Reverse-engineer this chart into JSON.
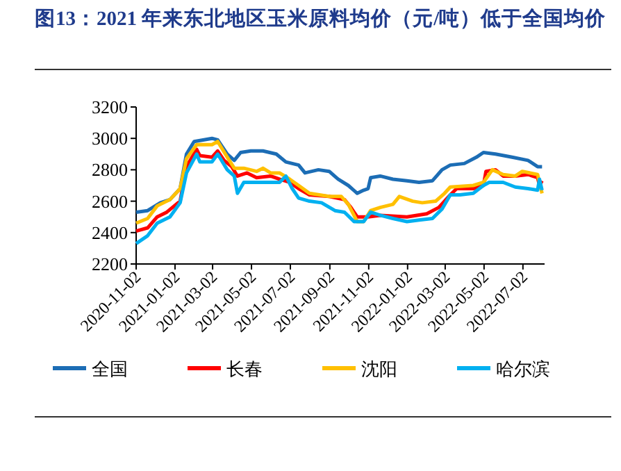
{
  "chart_data": {
    "type": "line",
    "title": "图13：2021 年来东北地区玉米原料均价（元/吨）低于全国均价",
    "xlim": [
      "2020-11-02",
      "2022-08-05"
    ],
    "xticks": [
      "2020-11-02",
      "2021-01-02",
      "2021-03-02",
      "2021-05-02",
      "2021-07-02",
      "2021-09-02",
      "2021-11-02",
      "2022-01-02",
      "2022-03-02",
      "2022-05-02",
      "2022-07-02"
    ],
    "ylim": [
      2200,
      3200
    ],
    "yticks": [
      2200,
      2400,
      2600,
      2800,
      3000,
      3200
    ],
    "grid": false,
    "legend": "bottom",
    "marker": "none",
    "line_style": "solid",
    "series": [
      {
        "name": "全国",
        "color": "#1c6db5",
        "x": [
          "2020-11-02",
          "2020-11-20",
          "2020-12-10",
          "2020-12-25",
          "2021-01-10",
          "2021-01-20",
          "2021-02-01",
          "2021-02-15",
          "2021-03-01",
          "2021-03-10",
          "2021-03-25",
          "2021-04-05",
          "2021-04-15",
          "2021-05-01",
          "2021-05-20",
          "2021-06-10",
          "2021-06-25",
          "2021-07-15",
          "2021-07-25",
          "2021-08-15",
          "2021-09-01",
          "2021-09-15",
          "2021-10-01",
          "2021-10-15",
          "2021-10-25",
          "2021-11-01",
          "2021-11-05",
          "2021-11-20",
          "2021-12-10",
          "2022-01-01",
          "2022-01-20",
          "2022-02-10",
          "2022-02-25",
          "2022-03-10",
          "2022-04-01",
          "2022-04-20",
          "2022-05-01",
          "2022-05-20",
          "2022-06-15",
          "2022-07-10",
          "2022-07-25",
          "2022-08-01"
        ],
        "values": [
          2530,
          2540,
          2590,
          2610,
          2680,
          2900,
          2980,
          2990,
          3000,
          2990,
          2900,
          2860,
          2910,
          2920,
          2920,
          2900,
          2850,
          2830,
          2780,
          2800,
          2790,
          2740,
          2700,
          2650,
          2670,
          2680,
          2750,
          2760,
          2740,
          2730,
          2720,
          2730,
          2800,
          2830,
          2840,
          2880,
          2910,
          2900,
          2880,
          2860,
          2820,
          2820
        ]
      },
      {
        "name": "长春",
        "color": "#ff0000",
        "x": [
          "2020-11-02",
          "2020-11-20",
          "2020-12-05",
          "2020-12-20",
          "2021-01-10",
          "2021-01-20",
          "2021-02-05",
          "2021-02-10",
          "2021-03-01",
          "2021-03-10",
          "2021-03-20",
          "2021-04-01",
          "2021-04-10",
          "2021-04-25",
          "2021-05-10",
          "2021-06-01",
          "2021-06-15",
          "2021-07-01",
          "2021-07-15",
          "2021-08-01",
          "2021-09-01",
          "2021-09-25",
          "2021-10-05",
          "2021-10-15",
          "2021-11-01",
          "2021-11-20",
          "2022-01-01",
          "2022-02-01",
          "2022-02-20",
          "2022-03-10",
          "2022-03-20",
          "2022-04-15",
          "2022-05-01",
          "2022-05-05",
          "2022-05-20",
          "2022-06-01",
          "2022-06-20",
          "2022-07-10",
          "2022-07-25",
          "2022-07-28",
          "2022-08-01"
        ],
        "values": [
          2410,
          2430,
          2500,
          2530,
          2600,
          2820,
          2930,
          2890,
          2880,
          2920,
          2860,
          2820,
          2760,
          2780,
          2750,
          2760,
          2740,
          2720,
          2680,
          2640,
          2630,
          2610,
          2560,
          2500,
          2500,
          2510,
          2500,
          2520,
          2560,
          2640,
          2680,
          2680,
          2700,
          2790,
          2800,
          2760,
          2760,
          2770,
          2750,
          2700,
          2730
        ]
      },
      {
        "name": "沈阳",
        "color": "#ffc000",
        "x": [
          "2020-11-02",
          "2020-11-20",
          "2020-12-05",
          "2020-12-25",
          "2021-01-10",
          "2021-01-20",
          "2021-02-05",
          "2021-03-01",
          "2021-03-10",
          "2021-03-25",
          "2021-04-05",
          "2021-04-20",
          "2021-05-10",
          "2021-05-20",
          "2021-06-01",
          "2021-06-15",
          "2021-07-01",
          "2021-07-15",
          "2021-08-01",
          "2021-09-01",
          "2021-09-20",
          "2021-10-01",
          "2021-10-15",
          "2021-10-25",
          "2021-11-05",
          "2021-11-20",
          "2021-12-10",
          "2021-12-20",
          "2022-01-10",
          "2022-01-25",
          "2022-02-15",
          "2022-03-01",
          "2022-03-10",
          "2022-04-15",
          "2022-05-01",
          "2022-05-15",
          "2022-06-01",
          "2022-06-20",
          "2022-07-01",
          "2022-07-25",
          "2022-08-01"
        ],
        "values": [
          2460,
          2490,
          2570,
          2610,
          2680,
          2870,
          2960,
          2960,
          2980,
          2880,
          2810,
          2810,
          2790,
          2810,
          2780,
          2780,
          2740,
          2700,
          2650,
          2630,
          2630,
          2580,
          2470,
          2470,
          2540,
          2560,
          2580,
          2630,
          2600,
          2590,
          2600,
          2650,
          2690,
          2700,
          2720,
          2800,
          2770,
          2760,
          2790,
          2770,
          2650
        ]
      },
      {
        "name": "哈尔滨",
        "color": "#00b0f0",
        "x": [
          "2020-11-02",
          "2020-11-20",
          "2020-12-05",
          "2020-12-25",
          "2021-01-10",
          "2021-01-20",
          "2021-02-05",
          "2021-02-10",
          "2021-03-01",
          "2021-03-10",
          "2021-03-25",
          "2021-04-05",
          "2021-04-10",
          "2021-04-20",
          "2021-05-10",
          "2021-06-01",
          "2021-06-15",
          "2021-06-25",
          "2021-07-05",
          "2021-07-15",
          "2021-08-01",
          "2021-08-20",
          "2021-09-10",
          "2021-09-25",
          "2021-10-10",
          "2021-10-25",
          "2021-11-05",
          "2021-11-20",
          "2021-12-10",
          "2022-01-01",
          "2022-01-20",
          "2022-02-10",
          "2022-02-25",
          "2022-03-10",
          "2022-03-25",
          "2022-04-15",
          "2022-05-01",
          "2022-05-10",
          "2022-06-01",
          "2022-06-20",
          "2022-07-10",
          "2022-07-25",
          "2022-07-28",
          "2022-08-01"
        ],
        "values": [
          2330,
          2380,
          2460,
          2500,
          2590,
          2780,
          2900,
          2850,
          2850,
          2900,
          2800,
          2760,
          2650,
          2720,
          2720,
          2720,
          2720,
          2760,
          2680,
          2620,
          2600,
          2590,
          2540,
          2530,
          2470,
          2470,
          2530,
          2510,
          2490,
          2470,
          2480,
          2490,
          2550,
          2640,
          2640,
          2650,
          2700,
          2720,
          2720,
          2690,
          2680,
          2670,
          2740,
          2670
        ]
      }
    ]
  }
}
